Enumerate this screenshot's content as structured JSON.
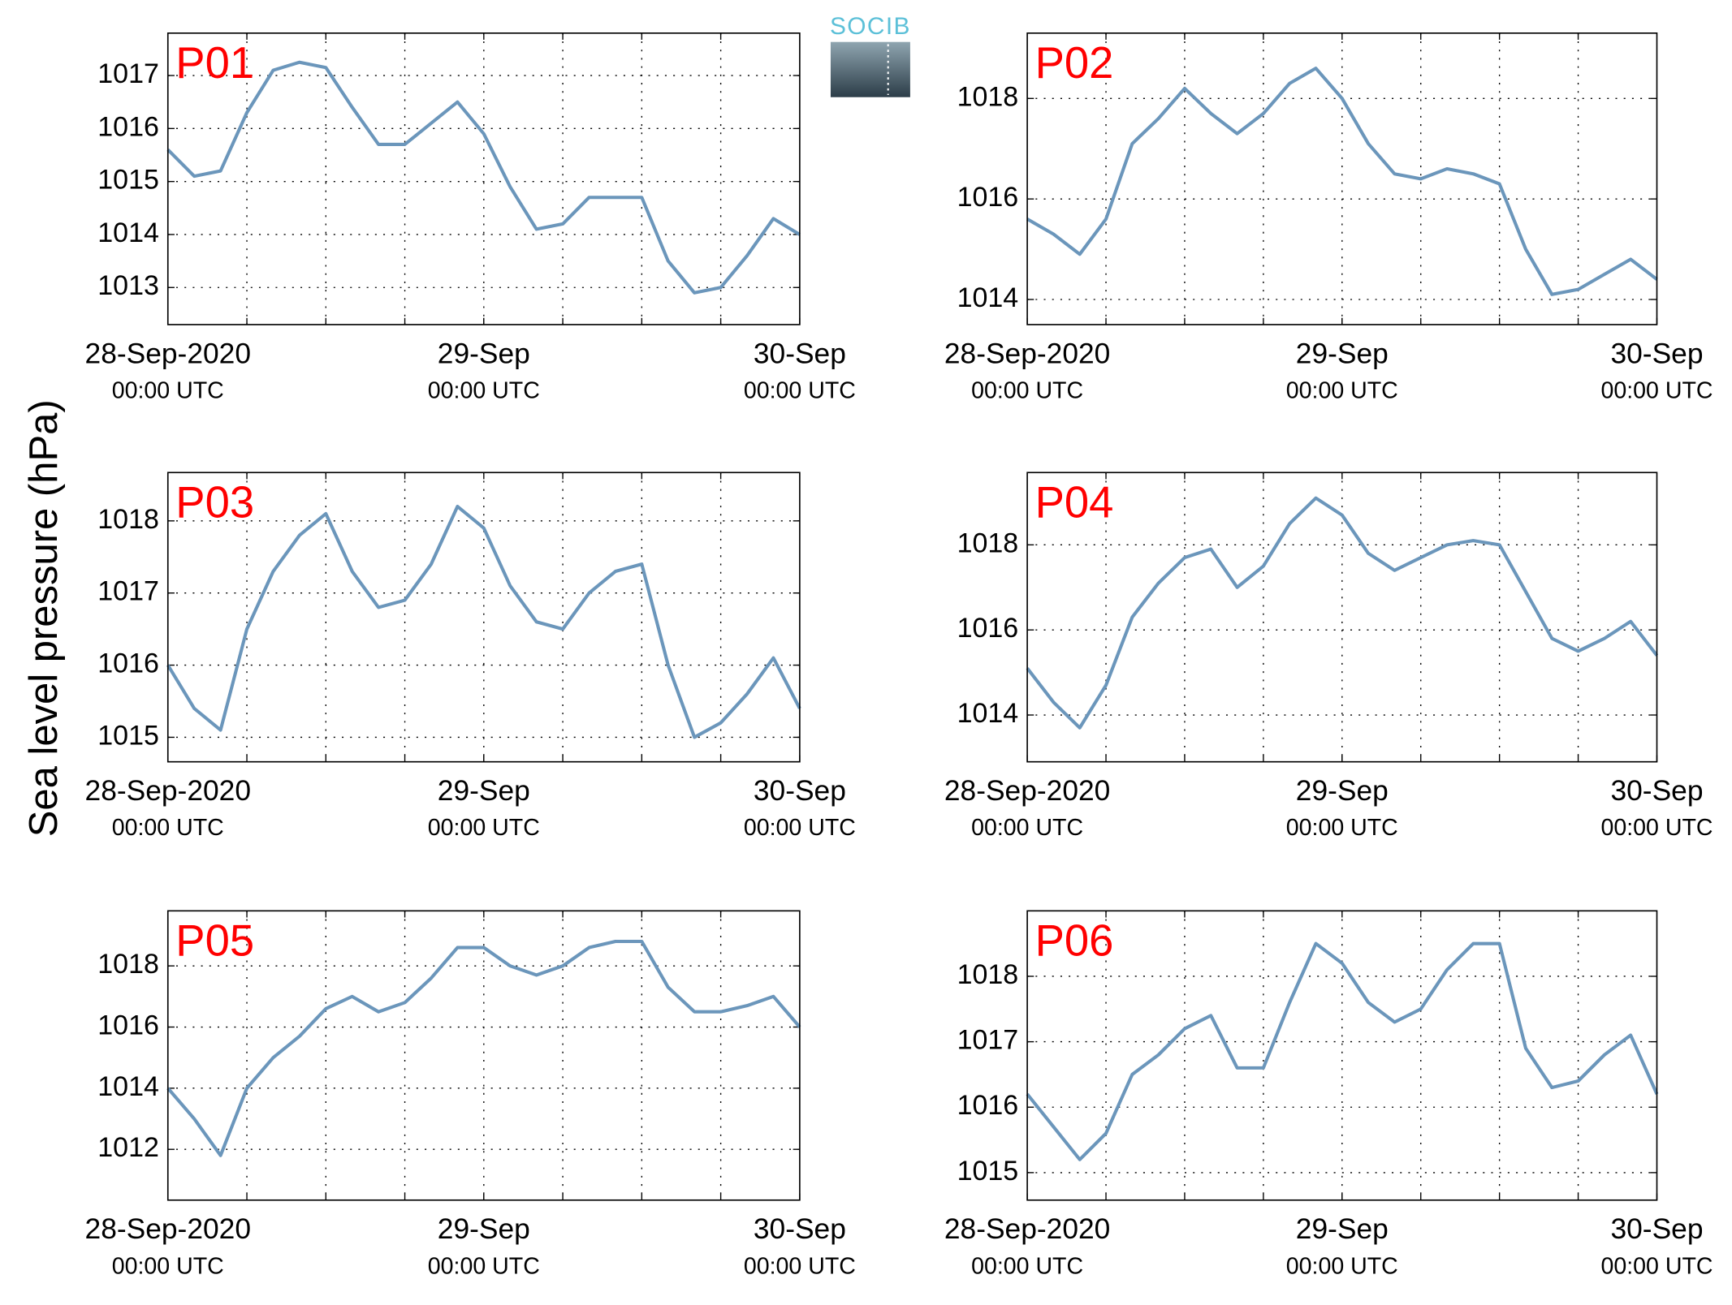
{
  "ylabel": "Sea level pressure (hPa)",
  "logo": "SOCIB",
  "chart_data": [
    {
      "type": "line",
      "title": "P01",
      "color": "#6b96bb",
      "grid": true,
      "x": [
        0,
        2,
        4,
        6,
        8,
        10,
        12,
        14,
        16,
        18,
        20,
        22,
        24,
        26,
        28,
        30,
        32,
        34,
        36,
        38,
        40,
        42,
        44,
        46,
        48
      ],
      "values": [
        1015.6,
        1015.1,
        1015.2,
        1016.3,
        1017.1,
        1017.25,
        1017.15,
        1016.4,
        1015.7,
        1015.7,
        1016.1,
        1016.5,
        1015.9,
        1014.9,
        1014.1,
        1014.2,
        1014.7,
        1014.7,
        1014.7,
        1013.5,
        1012.9,
        1013.0,
        1013.6,
        1014.3,
        1014.0
      ],
      "xlim": [
        0,
        48
      ],
      "xticks": [
        {
          "value": 0,
          "label": [
            "28-Sep-2020",
            "00:00 UTC"
          ]
        },
        {
          "value": 24,
          "label": [
            "29-Sep",
            "00:00 UTC"
          ]
        },
        {
          "value": 48,
          "label": [
            "30-Sep",
            "00:00 UTC"
          ]
        }
      ],
      "xgrid": [
        6,
        12,
        18,
        24,
        30,
        36,
        42
      ],
      "ylim": [
        1012.3,
        1017.8
      ],
      "yticks": [
        1013,
        1014,
        1015,
        1016,
        1017
      ]
    },
    {
      "type": "line",
      "title": "P02",
      "color": "#6b96bb",
      "grid": true,
      "x": [
        0,
        2,
        4,
        6,
        8,
        10,
        12,
        14,
        16,
        18,
        20,
        22,
        24,
        26,
        28,
        30,
        32,
        34,
        36,
        38,
        40,
        42,
        44,
        46,
        48
      ],
      "values": [
        1015.6,
        1015.3,
        1014.9,
        1015.6,
        1017.1,
        1017.6,
        1018.2,
        1017.7,
        1017.3,
        1017.7,
        1018.3,
        1018.6,
        1018.0,
        1017.1,
        1016.5,
        1016.4,
        1016.6,
        1016.5,
        1016.3,
        1015.0,
        1014.1,
        1014.2,
        1014.5,
        1014.8,
        1014.4
      ],
      "xlim": [
        0,
        48
      ],
      "xticks": [
        {
          "value": 0,
          "label": [
            "28-Sep-2020",
            "00:00 UTC"
          ]
        },
        {
          "value": 24,
          "label": [
            "29-Sep",
            "00:00 UTC"
          ]
        },
        {
          "value": 48,
          "label": [
            "30-Sep",
            "00:00 UTC"
          ]
        }
      ],
      "xgrid": [
        6,
        12,
        18,
        24,
        30,
        36,
        42
      ],
      "ylim": [
        1013.5,
        1019.3
      ],
      "yticks": [
        1014,
        1016,
        1018
      ]
    },
    {
      "type": "line",
      "title": "P03",
      "color": "#6b96bb",
      "grid": true,
      "x": [
        0,
        2,
        4,
        6,
        8,
        10,
        12,
        14,
        16,
        18,
        20,
        22,
        24,
        26,
        28,
        30,
        32,
        34,
        36,
        38,
        40,
        42,
        44,
        46,
        48
      ],
      "values": [
        1016.0,
        1015.4,
        1015.1,
        1016.5,
        1017.3,
        1017.8,
        1018.1,
        1017.3,
        1016.8,
        1016.9,
        1017.4,
        1018.2,
        1017.9,
        1017.1,
        1016.6,
        1016.5,
        1017.0,
        1017.3,
        1017.4,
        1016.0,
        1015.0,
        1015.2,
        1015.6,
        1016.1,
        1015.4
      ],
      "xlim": [
        0,
        48
      ],
      "xticks": [
        {
          "value": 0,
          "label": [
            "28-Sep-2020",
            "00:00 UTC"
          ]
        },
        {
          "value": 24,
          "label": [
            "29-Sep",
            "00:00 UTC"
          ]
        },
        {
          "value": 48,
          "label": [
            "30-Sep",
            "00:00 UTC"
          ]
        }
      ],
      "xgrid": [
        6,
        12,
        18,
        24,
        30,
        36,
        42
      ],
      "ylim": [
        1014.66,
        1018.67
      ],
      "yticks": [
        1015,
        1016,
        1017,
        1018
      ]
    },
    {
      "type": "line",
      "title": "P04",
      "color": "#6b96bb",
      "grid": true,
      "x": [
        0,
        2,
        4,
        6,
        8,
        10,
        12,
        14,
        16,
        18,
        20,
        22,
        24,
        26,
        28,
        30,
        32,
        34,
        36,
        38,
        40,
        42,
        44,
        46,
        48
      ],
      "values": [
        1015.1,
        1014.3,
        1013.7,
        1014.7,
        1016.3,
        1017.1,
        1017.7,
        1017.9,
        1017.0,
        1017.5,
        1018.5,
        1019.1,
        1018.7,
        1017.8,
        1017.4,
        1017.7,
        1018.0,
        1018.1,
        1018.0,
        1016.9,
        1015.8,
        1015.5,
        1015.8,
        1016.2,
        1015.4
      ],
      "xlim": [
        0,
        48
      ],
      "xticks": [
        {
          "value": 0,
          "label": [
            "28-Sep-2020",
            "00:00 UTC"
          ]
        },
        {
          "value": 24,
          "label": [
            "29-Sep",
            "00:00 UTC"
          ]
        },
        {
          "value": 48,
          "label": [
            "30-Sep",
            "00:00 UTC"
          ]
        }
      ],
      "xgrid": [
        6,
        12,
        18,
        24,
        30,
        36,
        42
      ],
      "ylim": [
        1012.9,
        1019.7
      ],
      "yticks": [
        1014,
        1016,
        1018
      ]
    },
    {
      "type": "line",
      "title": "P05",
      "color": "#6b96bb",
      "grid": true,
      "x": [
        0,
        2,
        4,
        6,
        8,
        10,
        12,
        14,
        16,
        18,
        20,
        22,
        24,
        26,
        28,
        30,
        32,
        34,
        36,
        38,
        40,
        42,
        44,
        46,
        48
      ],
      "values": [
        1014.0,
        1013.0,
        1011.8,
        1014.0,
        1015.0,
        1015.7,
        1016.6,
        1017.0,
        1016.5,
        1016.8,
        1017.6,
        1018.6,
        1018.6,
        1018.0,
        1017.7,
        1018.0,
        1018.6,
        1018.8,
        1018.8,
        1017.3,
        1016.5,
        1016.5,
        1016.7,
        1017.0,
        1016.0
      ],
      "xlim": [
        0,
        48
      ],
      "xticks": [
        {
          "value": 0,
          "label": [
            "28-Sep-2020",
            "00:00 UTC"
          ]
        },
        {
          "value": 24,
          "label": [
            "29-Sep",
            "00:00 UTC"
          ]
        },
        {
          "value": 48,
          "label": [
            "30-Sep",
            "00:00 UTC"
          ]
        }
      ],
      "xgrid": [
        6,
        12,
        18,
        24,
        30,
        36,
        42
      ],
      "ylim": [
        1010.34,
        1019.8
      ],
      "yticks": [
        1012,
        1014,
        1016,
        1018
      ]
    },
    {
      "type": "line",
      "title": "P06",
      "color": "#6b96bb",
      "grid": true,
      "x": [
        0,
        2,
        4,
        6,
        8,
        10,
        12,
        14,
        16,
        18,
        20,
        22,
        24,
        26,
        28,
        30,
        32,
        34,
        36,
        38,
        40,
        42,
        44,
        46,
        48
      ],
      "values": [
        1016.2,
        1015.7,
        1015.2,
        1015.6,
        1016.5,
        1016.8,
        1017.2,
        1017.4,
        1016.6,
        1016.6,
        1017.6,
        1018.5,
        1018.2,
        1017.6,
        1017.3,
        1017.5,
        1018.1,
        1018.5,
        1018.5,
        1016.9,
        1016.3,
        1016.4,
        1016.8,
        1017.1,
        1016.2
      ],
      "xlim": [
        0,
        48
      ],
      "xticks": [
        {
          "value": 0,
          "label": [
            "28-Sep-2020",
            "00:00 UTC"
          ]
        },
        {
          "value": 24,
          "label": [
            "29-Sep",
            "00:00 UTC"
          ]
        },
        {
          "value": 48,
          "label": [
            "30-Sep",
            "00:00 UTC"
          ]
        }
      ],
      "xgrid": [
        6,
        12,
        18,
        24,
        30,
        36,
        42
      ],
      "ylim": [
        1014.58,
        1019.0
      ],
      "yticks": [
        1015,
        1016,
        1017,
        1018
      ]
    }
  ]
}
